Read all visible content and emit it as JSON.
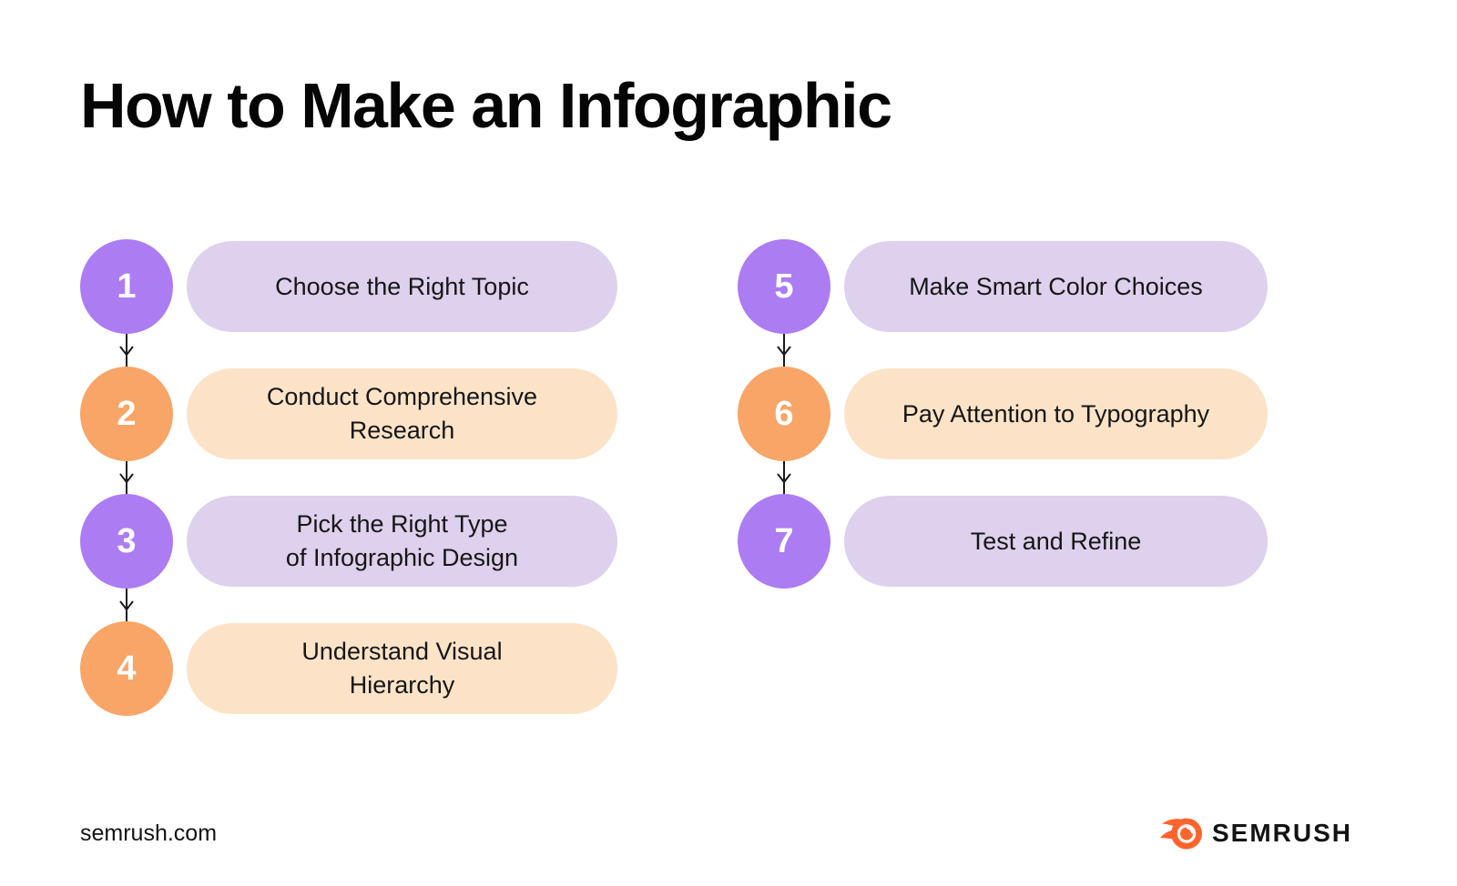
{
  "title": "How to Make an Infographic",
  "steps": [
    {
      "number": "1",
      "scheme": "purple",
      "lines": [
        "Choose the Right Topic"
      ]
    },
    {
      "number": "2",
      "scheme": "orange",
      "lines": [
        "Conduct Comprehensive",
        "Research"
      ]
    },
    {
      "number": "3",
      "scheme": "purple",
      "lines": [
        "Pick the Right Type",
        "of Infographic Design"
      ]
    },
    {
      "number": "4",
      "scheme": "orange",
      "lines": [
        "Understand Visual",
        "Hierarchy"
      ]
    },
    {
      "number": "5",
      "scheme": "purple",
      "lines": [
        "Make Smart Color Choices"
      ]
    },
    {
      "number": "6",
      "scheme": "orange",
      "lines": [
        "Pay Attention to Typography"
      ]
    },
    {
      "number": "7",
      "scheme": "purple",
      "lines": [
        "Test and Refine"
      ]
    }
  ],
  "layout_columns": [
    [
      0,
      1,
      2,
      3
    ],
    [
      4,
      5,
      6
    ]
  ],
  "footer": {
    "website": "semrush.com",
    "brand": "SEMRUSH"
  },
  "colors": {
    "background": "#ffffff",
    "title_text": "#050505",
    "step_text": "#161616",
    "number_text": "#ffffff",
    "purple_circle": "#ac7cf3",
    "purple_pill": "#ddd1ee",
    "orange_circle": "#f8a567",
    "peach_pill": "#fce3c7",
    "arrow": "#1a1a1a",
    "brand_orange": "#ff642d",
    "url_text": "#141414",
    "wordmark_text": "#131313"
  }
}
